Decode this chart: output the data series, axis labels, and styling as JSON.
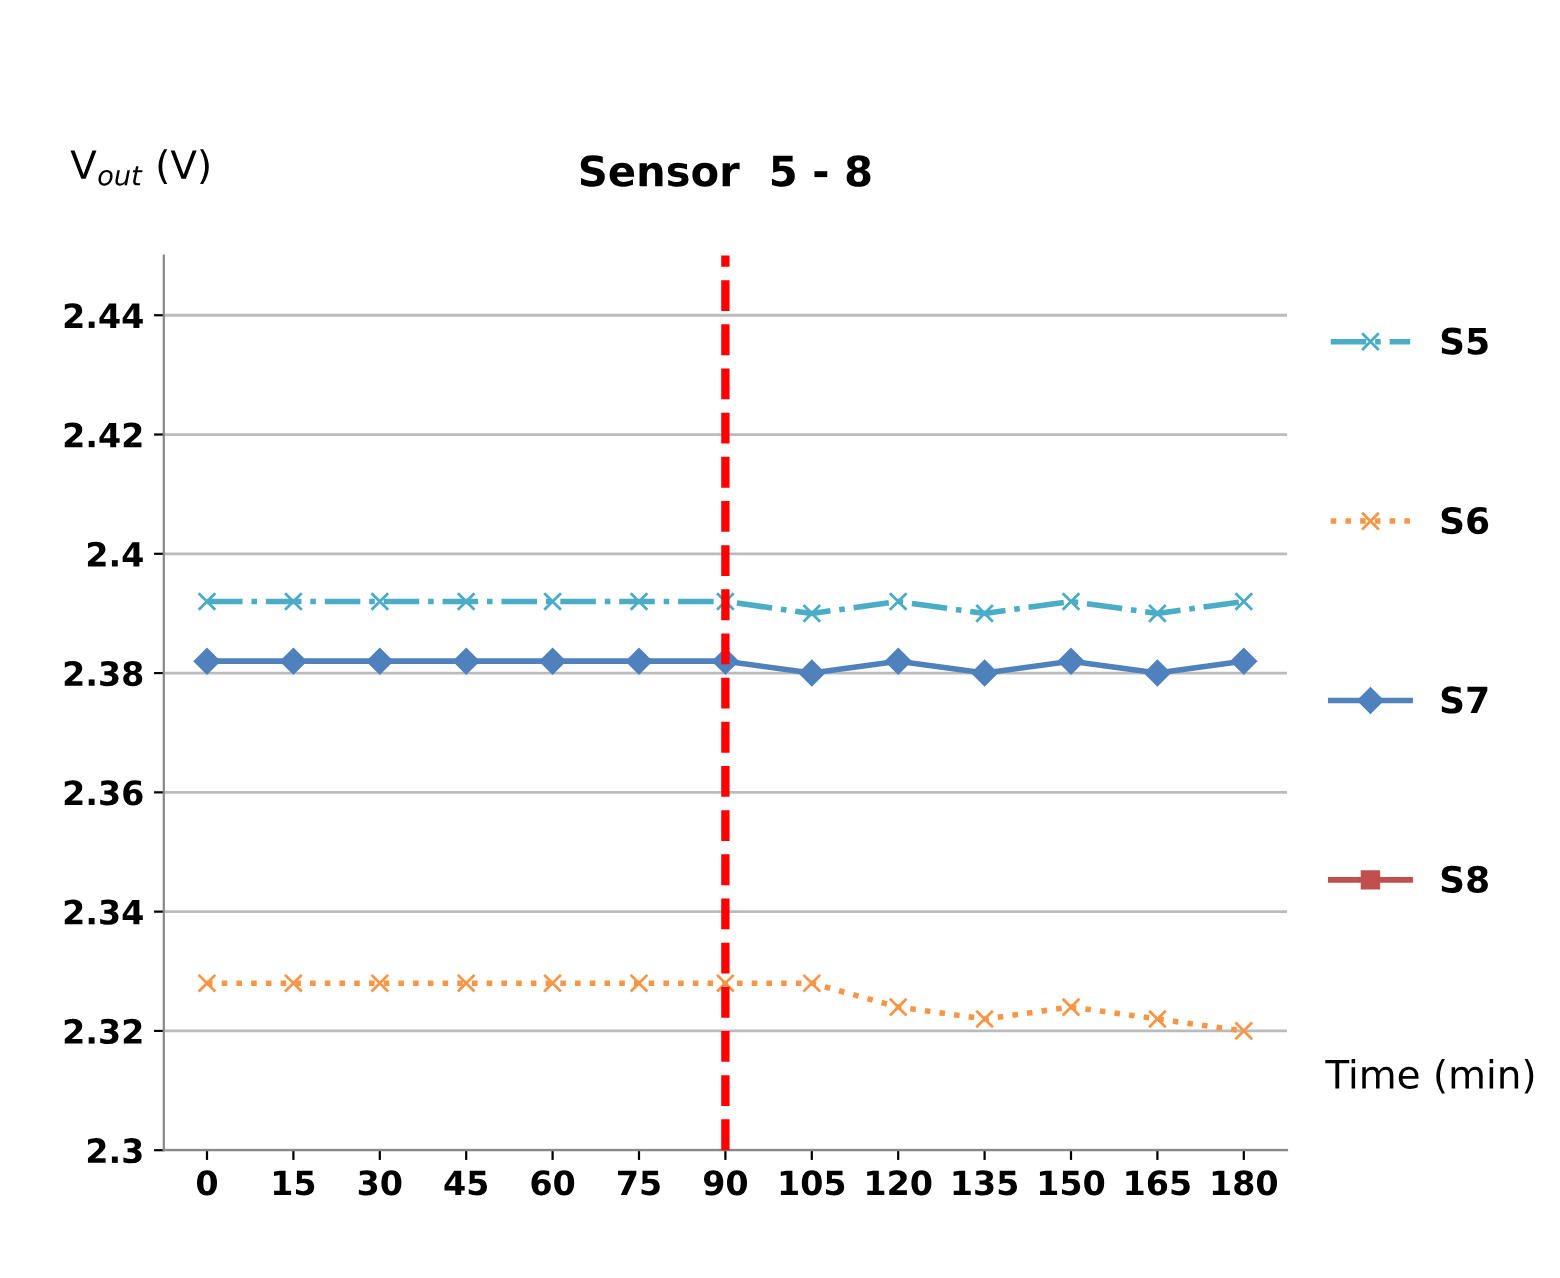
{
  "chart_data": {
    "type": "line",
    "title": "Sensor  5 - 8",
    "xlabel": "Time (min)",
    "ylabel": "V$_{out}$ (V)",
    "x": [
      0,
      15,
      30,
      45,
      60,
      75,
      90,
      105,
      120,
      135,
      150,
      165,
      180
    ],
    "xlim": [
      -7.5,
      187.5
    ],
    "xticks": [
      0,
      15,
      30,
      45,
      60,
      75,
      90,
      105,
      120,
      135,
      150,
      165,
      180
    ],
    "ylim": [
      2.3,
      2.45
    ],
    "yticks": [
      {
        "value": 2.3,
        "label": "2.3"
      },
      2.32,
      2.34,
      2.36,
      2.38,
      {
        "value": 2.4,
        "label": "2.4"
      },
      2.42,
      2.44
    ],
    "grid": "y",
    "legend": "right",
    "series": [
      {
        "name": "S5",
        "color": "#4bacc6",
        "marker": "cross",
        "line_style": "dashdot",
        "values": [
          2.392,
          2.392,
          2.392,
          2.392,
          2.392,
          2.392,
          2.392,
          2.39,
          2.392,
          2.39,
          2.392,
          2.39,
          2.392
        ]
      },
      {
        "name": "S6",
        "color": "#f79646",
        "marker": "cross",
        "line_style": "dotted",
        "values": [
          2.328,
          2.328,
          2.328,
          2.328,
          2.328,
          2.328,
          2.328,
          2.328,
          2.324,
          2.322,
          2.324,
          2.322,
          2.32
        ]
      },
      {
        "name": "S7",
        "color": "#4f81bd",
        "marker": "diamond",
        "line_style": "solid",
        "values": [
          2.382,
          2.382,
          2.382,
          2.382,
          2.382,
          2.382,
          2.382,
          2.38,
          2.382,
          2.38,
          2.382,
          2.38,
          2.382
        ]
      },
      {
        "name": "S8",
        "color": "#c0504d",
        "marker": "square",
        "line_style": "solid",
        "values": [
          null,
          null,
          null,
          null,
          null,
          null,
          null,
          null,
          null,
          null,
          null,
          null,
          null
        ]
      }
    ],
    "ref_lines": [
      {
        "axis": "x",
        "value": 90,
        "color": "#ff0000",
        "line_style": "dashed"
      }
    ]
  }
}
